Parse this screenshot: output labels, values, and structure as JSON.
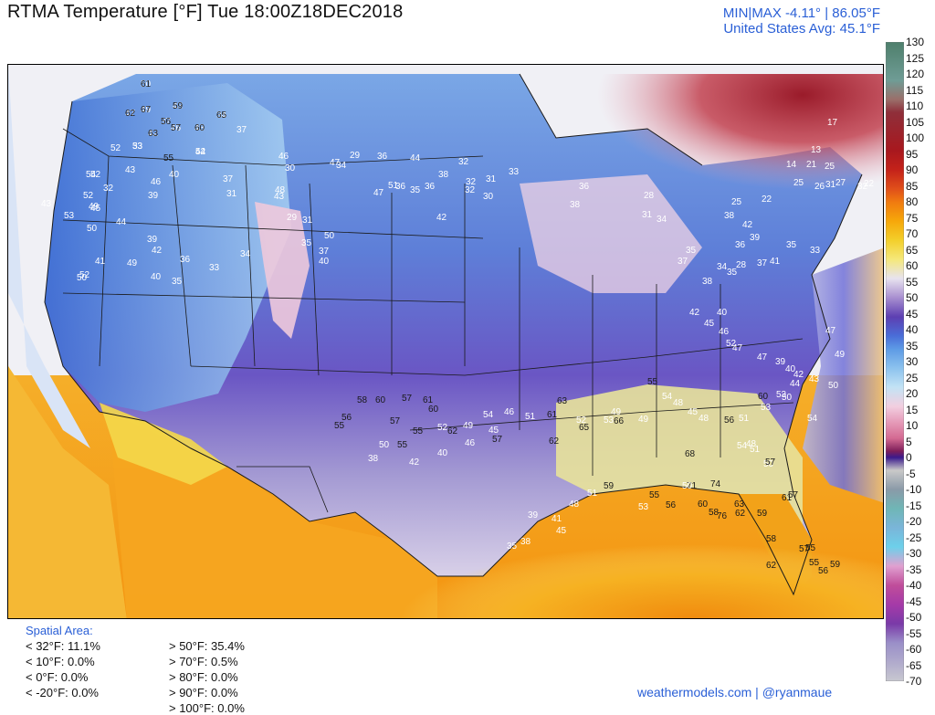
{
  "header": {
    "title": "RTMA Temperature [°F]  Tue 18:00Z18DEC2018",
    "minmax": "MIN|MAX -4.11°  |  86.05°F",
    "average": "United States Avg: 45.1°F"
  },
  "footer": {
    "spatial_title": "Spatial Area:",
    "left_stats": [
      "< 32°F: 11.1%",
      "< 10°F: 0.0%",
      "< 0°F: 0.0%",
      "< -20°F: 0.0%"
    ],
    "right_stats": [
      "> 50°F: 35.4%",
      "> 70°F: 0.5%",
      "> 80°F: 0.0%",
      "> 90°F: 0.0%",
      "> 100°F: 0.0%"
    ],
    "credit": "weathermodels.com | @ryanmaue"
  },
  "colorbar": {
    "labels": [
      "130",
      "125",
      "120",
      "115",
      "110",
      "105",
      "100",
      "95",
      "90",
      "85",
      "80",
      "75",
      "70",
      "65",
      "60",
      "55",
      "50",
      "45",
      "40",
      "35",
      "30",
      "25",
      "20",
      "15",
      "10",
      "5",
      "0",
      "-5",
      "-10",
      "-15",
      "-20",
      "-25",
      "-30",
      "-35",
      "-40",
      "-45",
      "-50",
      "-55",
      "-60",
      "-65",
      "-70"
    ],
    "stops": [
      [
        "#4e7f6c",
        0
      ],
      [
        "#6f9c95",
        0.06
      ],
      [
        "#9a6f6a",
        0.09
      ],
      [
        "#8f2f3a",
        0.11
      ],
      [
        "#a8181e",
        0.17
      ],
      [
        "#c4221a",
        0.2
      ],
      [
        "#e0501a",
        0.23
      ],
      [
        "#f07a10",
        0.25
      ],
      [
        "#f6a70a",
        0.28
      ],
      [
        "#f3cf2a",
        0.31
      ],
      [
        "#f5e87a",
        0.34
      ],
      [
        "#e7e3ef",
        0.37
      ],
      [
        "#a88fd0",
        0.4
      ],
      [
        "#5d3fb2",
        0.43
      ],
      [
        "#4a6ed8",
        0.46
      ],
      [
        "#5d9ae5",
        0.48
      ],
      [
        "#8cc2ee",
        0.51
      ],
      [
        "#c3e3f5",
        0.54
      ],
      [
        "#f2cfe0",
        0.57
      ],
      [
        "#e8a4c0",
        0.59
      ],
      [
        "#d46a92",
        0.62
      ],
      [
        "#7f1f5a",
        0.64
      ],
      [
        "#3b1a8c",
        0.65
      ],
      [
        "#c9c9c9",
        0.67
      ],
      [
        "#8a9aa8",
        0.7
      ],
      [
        "#6fb6b6",
        0.73
      ],
      [
        "#7ab5d9",
        0.76
      ],
      [
        "#6dd0ea",
        0.79
      ],
      [
        "#e0a0d0",
        0.82
      ],
      [
        "#c04d9a",
        0.85
      ],
      [
        "#a53aa8",
        0.88
      ],
      [
        "#7a3aa8",
        0.91
      ],
      [
        "#9a8fc8",
        0.94
      ],
      [
        "#b0aacc",
        0.97
      ],
      [
        "#c8c8d0",
        1.0
      ]
    ]
  },
  "chart_data": {
    "type": "heatmap",
    "title": "RTMA Temperature [°F]",
    "valid_time": "Tue 18:00Z18DEC2018",
    "min": -4.11,
    "max": 86.05,
    "us_average": 45.1,
    "units": "°F",
    "scale_range": [
      -70,
      130
    ],
    "labels": [
      [
        "50"
      ],
      [
        "47"
      ],
      [
        "49"
      ],
      [
        "43"
      ],
      [
        "37"
      ],
      [
        "46"
      ],
      [
        "43"
      ],
      [
        "34"
      ],
      [
        "42"
      ],
      [
        "53"
      ],
      [
        "44"
      ],
      [
        "37"
      ],
      [
        "52"
      ],
      [
        "55"
      ],
      [
        "52"
      ],
      [
        "40"
      ],
      [
        "37"
      ],
      [
        "43"
      ],
      [
        "46"
      ],
      [
        "54"
      ],
      [
        "32"
      ],
      [
        "45"
      ],
      [
        "39"
      ],
      [
        "31"
      ],
      [
        "52"
      ],
      [
        "49"
      ],
      [
        "53"
      ],
      [
        "43"
      ],
      [
        "50"
      ],
      [
        "44"
      ],
      [
        "39"
      ],
      [
        "42"
      ],
      [
        "36"
      ],
      [
        "49"
      ],
      [
        "41"
      ],
      [
        "52"
      ],
      [
        "40"
      ],
      [
        "35"
      ],
      [
        "50"
      ],
      [
        "33"
      ],
      [
        "34"
      ],
      [
        "46"
      ],
      [
        "48"
      ],
      [
        "47"
      ],
      [
        "34"
      ],
      [
        "29"
      ],
      [
        "36"
      ],
      [
        "44"
      ],
      [
        "32"
      ],
      [
        "38"
      ],
      [
        "32"
      ],
      [
        "30"
      ],
      [
        "31"
      ],
      [
        "47"
      ],
      [
        "35"
      ],
      [
        "36"
      ],
      [
        "51"
      ],
      [
        "36"
      ],
      [
        "42"
      ],
      [
        "32"
      ],
      [
        "33"
      ],
      [
        "43"
      ],
      [
        "30"
      ],
      [
        "29"
      ],
      [
        "31"
      ],
      [
        "37"
      ],
      [
        "50"
      ],
      [
        "35"
      ],
      [
        "40"
      ],
      [
        "38"
      ],
      [
        "36"
      ],
      [
        "28"
      ],
      [
        "25"
      ],
      [
        "22"
      ],
      [
        "14"
      ],
      [
        "21"
      ],
      [
        "25"
      ],
      [
        "17"
      ],
      [
        "22"
      ],
      [
        "13"
      ],
      [
        "25"
      ],
      [
        "26"
      ],
      [
        "27"
      ],
      [
        "32"
      ],
      [
        "31"
      ],
      [
        "38"
      ],
      [
        "42"
      ],
      [
        "39"
      ],
      [
        "36"
      ],
      [
        "37"
      ],
      [
        "35"
      ],
      [
        "33"
      ],
      [
        "28"
      ],
      [
        "31"
      ],
      [
        "34"
      ],
      [
        "35"
      ],
      [
        "37"
      ],
      [
        "34"
      ],
      [
        "41"
      ],
      [
        "38"
      ],
      [
        "35"
      ],
      [
        "40"
      ],
      [
        "42"
      ],
      [
        "45"
      ],
      [
        "46"
      ],
      [
        "52"
      ],
      [
        "47"
      ],
      [
        "47"
      ],
      [
        "39"
      ],
      [
        "40"
      ],
      [
        "42"
      ],
      [
        "44"
      ],
      [
        "43"
      ],
      [
        "47"
      ],
      [
        "49"
      ],
      [
        "50"
      ],
      [
        "50"
      ],
      [
        "53"
      ],
      [
        "51"
      ],
      [
        "48"
      ],
      [
        "45"
      ],
      [
        "48"
      ],
      [
        "54"
      ],
      [
        "55"
      ],
      [
        "49"
      ],
      [
        "49"
      ],
      [
        "53"
      ],
      [
        "52"
      ],
      [
        "51"
      ],
      [
        "46"
      ],
      [
        "45"
      ],
      [
        "46"
      ],
      [
        "49"
      ],
      [
        "52"
      ],
      [
        "55"
      ],
      [
        "57"
      ],
      [
        "56"
      ],
      [
        "55"
      ],
      [
        "58"
      ],
      [
        "60"
      ],
      [
        "57"
      ],
      [
        "61"
      ],
      [
        "60"
      ],
      [
        "62"
      ],
      [
        "54"
      ],
      [
        "57"
      ],
      [
        "61"
      ],
      [
        "63"
      ],
      [
        "62"
      ],
      [
        "65"
      ],
      [
        "66"
      ],
      [
        "68"
      ],
      [
        "74"
      ],
      [
        "76"
      ],
      [
        "71"
      ],
      [
        "60"
      ],
      [
        "63"
      ],
      [
        "59"
      ],
      [
        "62"
      ],
      [
        "61"
      ],
      [
        "57"
      ],
      [
        "55"
      ],
      [
        "56"
      ],
      [
        "55"
      ],
      [
        "59"
      ],
      [
        "57"
      ],
      [
        "58"
      ],
      [
        "62"
      ],
      [
        "53"
      ],
      [
        "60"
      ],
      [
        "56"
      ],
      [
        "54"
      ],
      [
        "48"
      ],
      [
        "51"
      ],
      [
        "50"
      ],
      [
        "54"
      ],
      [
        "57"
      ],
      [
        "58"
      ],
      [
        "50"
      ],
      [
        "56"
      ],
      [
        "55"
      ],
      [
        "53"
      ],
      [
        "59"
      ],
      [
        "51"
      ],
      [
        "48"
      ],
      [
        "45"
      ],
      [
        "41"
      ],
      [
        "39"
      ],
      [
        "38"
      ],
      [
        "35"
      ],
      [
        "40"
      ],
      [
        "42"
      ],
      [
        "55"
      ],
      [
        "50"
      ],
      [
        "38"
      ],
      [
        "61"
      ],
      [
        "62"
      ],
      [
        "67"
      ],
      [
        "59"
      ],
      [
        "56"
      ],
      [
        "57"
      ],
      [
        "60"
      ],
      [
        "65"
      ],
      [
        "63"
      ],
      [
        "33"
      ],
      [
        "52"
      ]
    ]
  }
}
